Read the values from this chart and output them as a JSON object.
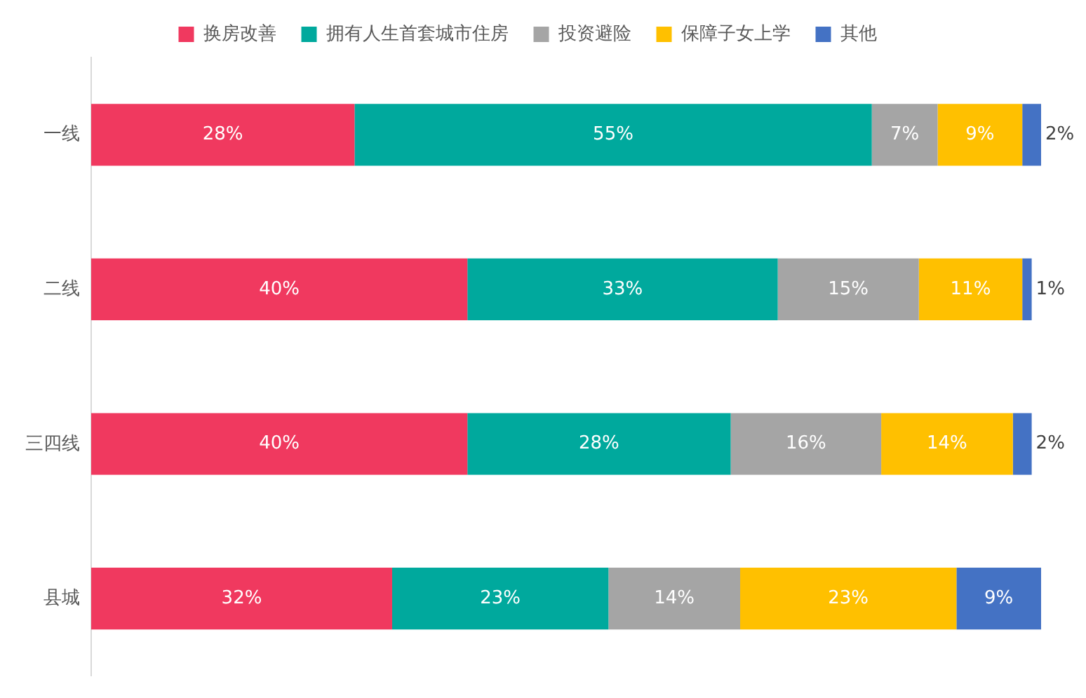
{
  "chart_data": {
    "type": "bar",
    "orientation": "horizontal",
    "stacked": true,
    "categories": [
      "一线",
      "二线",
      "三四线",
      "县城"
    ],
    "series": [
      {
        "name": "换房改善",
        "color": "#f0395f",
        "values": [
          28,
          40,
          40,
          32
        ],
        "value_labels": [
          "28%",
          "40%",
          "40%",
          "32%"
        ]
      },
      {
        "name": "拥有人生首套城市住房",
        "color": "#00a99d",
        "values": [
          55,
          33,
          28,
          23
        ],
        "value_labels": [
          "55%",
          "33%",
          "28%",
          "23%"
        ]
      },
      {
        "name": "投资避险",
        "color": "#a5a5a5",
        "values": [
          7,
          15,
          16,
          14
        ],
        "value_labels": [
          "7%",
          "15%",
          "16%",
          "14%"
        ]
      },
      {
        "name": "保障子女上学",
        "color": "#ffc000",
        "values": [
          9,
          11,
          14,
          23
        ],
        "value_labels": [
          "9%",
          "11%",
          "14%",
          "23%"
        ]
      },
      {
        "name": "其他",
        "color": "#4472c4",
        "values": [
          2,
          1,
          2,
          9
        ],
        "value_labels": [
          "2%",
          "1%",
          "2%",
          "9%"
        ]
      }
    ],
    "legend": "top",
    "grid": false,
    "tick_labels": "y"
  }
}
